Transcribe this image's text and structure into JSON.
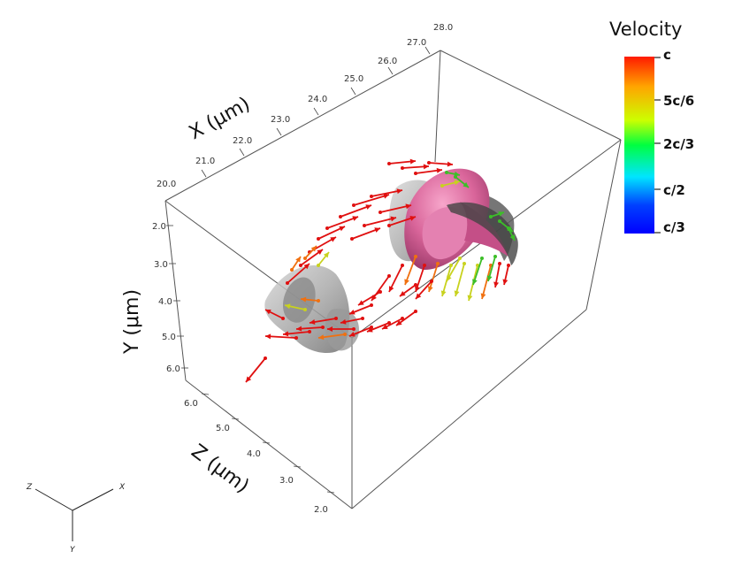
{
  "colorbar": {
    "title": "Velocity",
    "labels": [
      "c",
      "5c/6",
      "2c/3",
      "c/2",
      "c/3"
    ],
    "colors": [
      "#ff1a00",
      "#ffa500",
      "#ccff00",
      "#00ff40",
      "#00e5ff",
      "#0040ff",
      "#0000ff"
    ]
  },
  "axes": {
    "x": {
      "title": "X (μm)",
      "ticks": [
        "20.0",
        "21.0",
        "22.0",
        "23.0",
        "24.0",
        "25.0",
        "26.0",
        "27.0",
        "28.0"
      ]
    },
    "y": {
      "title": "Y (μm)",
      "ticks": [
        "2.0",
        "3.0",
        "4.0",
        "5.0",
        "6.0"
      ]
    },
    "z": {
      "title": "Z (μm)",
      "ticks": [
        "6.0",
        "5.0",
        "4.0",
        "3.0",
        "2.0"
      ]
    }
  },
  "triad": {
    "x": "X",
    "y": "Y",
    "z": "Z"
  },
  "palette": {
    "surface": "#d9659a",
    "surface_dark": "#9c3a6a",
    "smoke": "#a9a9a9",
    "arrow_red": "#e01010",
    "arrow_orange": "#f07010",
    "arrow_yellow": "#c8d21e",
    "arrow_green": "#3cbe28"
  }
}
